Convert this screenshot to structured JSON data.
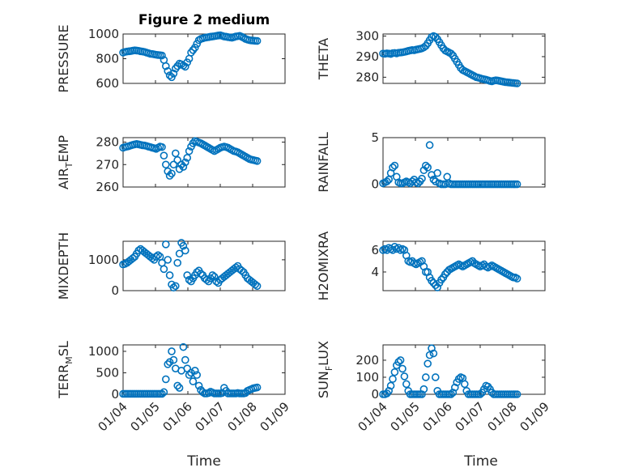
{
  "figure": {
    "title": "Figure 2 medium"
  },
  "chart_data": [
    {
      "type": "scatter",
      "ylabel": "PRESSURE",
      "ylim": [
        600,
        1000
      ],
      "yticks": [
        "1000",
        "800",
        "600"
      ],
      "xlim": [
        0,
        5
      ],
      "x": [
        0,
        0.06,
        0.12,
        0.18,
        0.24,
        0.3,
        0.36,
        0.42,
        0.48,
        0.54,
        0.6,
        0.66,
        0.72,
        0.78,
        0.84,
        0.9,
        0.96,
        1.02,
        1.08,
        1.14,
        1.2,
        1.26,
        1.32,
        1.38,
        1.44,
        1.5,
        1.56,
        1.62,
        1.68,
        1.74,
        1.8,
        1.86,
        1.92,
        1.98,
        2.04,
        2.1,
        2.16,
        2.22,
        2.28,
        2.34,
        2.4,
        2.46,
        2.52,
        2.58,
        2.64,
        2.7,
        2.76,
        2.82,
        2.88,
        2.94,
        3.0,
        3.06,
        3.12,
        3.18,
        3.24,
        3.3,
        3.36,
        3.42,
        3.48,
        3.54,
        3.6,
        3.66,
        3.72,
        3.78,
        3.84,
        3.9,
        3.96,
        4.02,
        4.08,
        4.14
      ],
      "y": [
        850,
        855,
        858,
        860,
        862,
        865,
        868,
        866,
        864,
        860,
        858,
        855,
        850,
        845,
        840,
        838,
        835,
        832,
        830,
        828,
        826,
        790,
        740,
        700,
        665,
        650,
        680,
        720,
        740,
        760,
        755,
        745,
        735,
        770,
        800,
        850,
        870,
        890,
        920,
        950,
        960,
        965,
        970,
        972,
        975,
        978,
        980,
        982,
        985,
        988,
        990,
        985,
        980,
        978,
        975,
        972,
        970,
        975,
        980,
        982,
        985,
        978,
        970,
        960,
        955,
        950,
        948,
        946,
        945,
        944
      ]
    },
    {
      "type": "scatter",
      "ylabel": "THETA",
      "ylim": [
        277,
        301
      ],
      "yticks": [
        "300",
        "290",
        "280"
      ],
      "xlim": [
        0,
        5
      ],
      "x": [
        0,
        0.06,
        0.12,
        0.18,
        0.24,
        0.3,
        0.36,
        0.42,
        0.48,
        0.54,
        0.6,
        0.66,
        0.72,
        0.78,
        0.84,
        0.9,
        0.96,
        1.02,
        1.08,
        1.14,
        1.2,
        1.26,
        1.32,
        1.38,
        1.44,
        1.5,
        1.56,
        1.62,
        1.68,
        1.74,
        1.8,
        1.86,
        1.92,
        1.98,
        2.04,
        2.1,
        2.16,
        2.22,
        2.28,
        2.34,
        2.4,
        2.46,
        2.52,
        2.58,
        2.64,
        2.7,
        2.76,
        2.82,
        2.88,
        2.94,
        3.0,
        3.06,
        3.12,
        3.18,
        3.24,
        3.3,
        3.36,
        3.42,
        3.48,
        3.54,
        3.6,
        3.66,
        3.72,
        3.78,
        3.84,
        3.9,
        3.96,
        4.02,
        4.08,
        4.14
      ],
      "y": [
        291.5,
        291.4,
        291.6,
        291.5,
        291.3,
        291.7,
        291.8,
        291.6,
        291.9,
        292.0,
        292.1,
        292.3,
        292.5,
        292.8,
        293.0,
        293.2,
        293.1,
        293.4,
        293.6,
        293.8,
        294.0,
        294.5,
        295.2,
        296.5,
        298.0,
        299.5,
        300.0,
        299.6,
        298.5,
        297.0,
        295.5,
        294.0,
        293.0,
        292.5,
        292.0,
        291.5,
        290.5,
        289.0,
        287.5,
        286.0,
        284.5,
        283.5,
        283.0,
        282.5,
        282.0,
        281.5,
        281.0,
        280.5,
        280.0,
        279.8,
        279.5,
        279.2,
        279.0,
        278.8,
        278.5,
        278.2,
        278.0,
        278.3,
        278.5,
        278.4,
        278.2,
        278.0,
        277.8,
        277.6,
        277.5,
        277.4,
        277.3,
        277.2,
        277.1,
        277.0
      ]
    },
    {
      "type": "scatter",
      "ylabel": "AIR_TEMP",
      "ylim": [
        260,
        282
      ],
      "yticks": [
        "280",
        "270",
        "260"
      ],
      "xlim": [
        0,
        5
      ],
      "x": [
        0,
        0.06,
        0.12,
        0.18,
        0.24,
        0.3,
        0.36,
        0.42,
        0.48,
        0.54,
        0.6,
        0.66,
        0.72,
        0.78,
        0.84,
        0.9,
        0.96,
        1.02,
        1.08,
        1.14,
        1.2,
        1.26,
        1.32,
        1.38,
        1.44,
        1.5,
        1.56,
        1.62,
        1.68,
        1.74,
        1.8,
        1.86,
        1.92,
        1.98,
        2.04,
        2.1,
        2.16,
        2.22,
        2.28,
        2.34,
        2.4,
        2.46,
        2.52,
        2.58,
        2.64,
        2.7,
        2.76,
        2.82,
        2.88,
        2.94,
        3.0,
        3.06,
        3.12,
        3.18,
        3.24,
        3.3,
        3.36,
        3.42,
        3.48,
        3.54,
        3.6,
        3.66,
        3.72,
        3.78,
        3.84,
        3.9,
        3.96,
        4.02,
        4.08,
        4.14
      ],
      "y": [
        277.5,
        277.8,
        278.0,
        278.2,
        278.5,
        278.8,
        279.0,
        279.2,
        279.0,
        278.8,
        278.6,
        278.5,
        278.3,
        278.0,
        277.8,
        277.5,
        277.3,
        277.0,
        277.5,
        278.0,
        277.8,
        274.0,
        270.0,
        267.0,
        265.0,
        266.0,
        270.0,
        275.0,
        272.0,
        268.0,
        270.0,
        269.0,
        271.0,
        273.0,
        276.0,
        278.0,
        279.5,
        280.5,
        280.2,
        279.8,
        279.5,
        279.0,
        278.5,
        278.0,
        277.5,
        277.0,
        276.5,
        276.0,
        276.5,
        277.0,
        277.5,
        277.8,
        278.0,
        277.8,
        277.5,
        277.0,
        276.5,
        276.0,
        275.8,
        275.5,
        275.0,
        274.5,
        274.0,
        273.5,
        273.0,
        272.5,
        272.2,
        272.0,
        271.8,
        271.6
      ]
    },
    {
      "type": "scatter",
      "ylabel": "RAINFALL",
      "ylim": [
        -0.3,
        5
      ],
      "yticks": [
        "5",
        "0"
      ],
      "xlim": [
        0,
        5
      ],
      "x": [
        0,
        0.06,
        0.12,
        0.18,
        0.24,
        0.3,
        0.36,
        0.42,
        0.48,
        0.54,
        0.6,
        0.66,
        0.72,
        0.78,
        0.84,
        0.9,
        0.96,
        1.02,
        1.08,
        1.14,
        1.2,
        1.26,
        1.32,
        1.38,
        1.44,
        1.5,
        1.56,
        1.62,
        1.68,
        1.74,
        1.8,
        1.86,
        1.92,
        1.98,
        2.04,
        2.1,
        2.16,
        2.22,
        2.28,
        2.34,
        2.4,
        2.46,
        2.52,
        2.58,
        2.64,
        2.7,
        2.76,
        2.82,
        2.88,
        2.94,
        3.0,
        3.06,
        3.12,
        3.18,
        3.24,
        3.3,
        3.36,
        3.42,
        3.48,
        3.54,
        3.6,
        3.66,
        3.72,
        3.78,
        3.84,
        3.9,
        3.96,
        4.02,
        4.08,
        4.14
      ],
      "y": [
        0.1,
        0.2,
        0.3,
        0.5,
        1.2,
        1.8,
        2.0,
        0.8,
        0.2,
        0.1,
        0.1,
        0.2,
        0.3,
        0.2,
        0.1,
        0.3,
        0.5,
        0.2,
        0.1,
        0.3,
        0.6,
        1.5,
        2.0,
        1.8,
        4.2,
        1.0,
        0.5,
        0.3,
        1.2,
        0.1,
        0.0,
        0.0,
        0.0,
        0.8,
        0.1,
        0.0,
        0.0,
        0.0,
        0.0,
        0.0,
        0.0,
        0.0,
        0.0,
        0.0,
        0.0,
        0.0,
        0.0,
        0.0,
        0.0,
        0.0,
        0.0,
        0.0,
        0.0,
        0.0,
        0.0,
        0.0,
        0.0,
        0.0,
        0.0,
        0.0,
        0.0,
        0.0,
        0.0,
        0.0,
        0.0,
        0.0,
        0.0,
        0.0,
        0.0,
        0.0
      ]
    },
    {
      "type": "scatter",
      "ylabel": "MIXDEPTH",
      "ylim": [
        0,
        1600
      ],
      "yticks": [
        "1000",
        "0"
      ],
      "xlim": [
        0,
        5
      ],
      "x": [
        0,
        0.06,
        0.12,
        0.18,
        0.24,
        0.3,
        0.36,
        0.42,
        0.48,
        0.54,
        0.6,
        0.66,
        0.72,
        0.78,
        0.84,
        0.9,
        0.96,
        1.02,
        1.08,
        1.14,
        1.2,
        1.26,
        1.32,
        1.38,
        1.44,
        1.5,
        1.56,
        1.62,
        1.68,
        1.74,
        1.8,
        1.86,
        1.92,
        1.98,
        2.04,
        2.1,
        2.16,
        2.22,
        2.28,
        2.34,
        2.4,
        2.46,
        2.52,
        2.58,
        2.64,
        2.7,
        2.76,
        2.82,
        2.88,
        2.94,
        3.0,
        3.06,
        3.12,
        3.18,
        3.24,
        3.3,
        3.36,
        3.42,
        3.48,
        3.54,
        3.6,
        3.66,
        3.72,
        3.78,
        3.84,
        3.9,
        3.96,
        4.02,
        4.08,
        4.14
      ],
      "y": [
        850,
        870,
        900,
        950,
        1000,
        1050,
        1100,
        1200,
        1300,
        1350,
        1300,
        1250,
        1200,
        1150,
        1100,
        1050,
        1000,
        1100,
        1150,
        1100,
        900,
        700,
        1500,
        1000,
        500,
        200,
        100,
        150,
        900,
        1200,
        1550,
        1450,
        1300,
        500,
        350,
        300,
        400,
        500,
        600,
        650,
        550,
        500,
        400,
        350,
        300,
        400,
        500,
        450,
        300,
        250,
        350,
        400,
        450,
        500,
        550,
        600,
        650,
        700,
        750,
        800,
        700,
        650,
        600,
        500,
        400,
        350,
        300,
        250,
        200,
        150
      ]
    },
    {
      "type": "scatter",
      "ylabel": "H2OMIXRA",
      "ylim": [
        2.3,
        6.8
      ],
      "yticks": [
        "6",
        "4"
      ],
      "xlim": [
        0,
        5
      ],
      "x": [
        0,
        0.06,
        0.12,
        0.18,
        0.24,
        0.3,
        0.36,
        0.42,
        0.48,
        0.54,
        0.6,
        0.66,
        0.72,
        0.78,
        0.84,
        0.9,
        0.96,
        1.02,
        1.08,
        1.14,
        1.2,
        1.26,
        1.32,
        1.38,
        1.44,
        1.5,
        1.56,
        1.62,
        1.68,
        1.74,
        1.8,
        1.86,
        1.92,
        1.98,
        2.04,
        2.1,
        2.16,
        2.22,
        2.28,
        2.34,
        2.4,
        2.46,
        2.52,
        2.58,
        2.64,
        2.7,
        2.76,
        2.82,
        2.88,
        2.94,
        3.0,
        3.06,
        3.12,
        3.18,
        3.24,
        3.3,
        3.36,
        3.42,
        3.48,
        3.54,
        3.6,
        3.66,
        3.72,
        3.78,
        3.84,
        3.9,
        3.96,
        4.02,
        4.08,
        4.14
      ],
      "y": [
        6.0,
        6.1,
        6.0,
        6.2,
        6.1,
        6.0,
        6.3,
        6.1,
        6.2,
        6.0,
        6.1,
        6.0,
        5.5,
        5.0,
        4.9,
        5.0,
        4.8,
        4.7,
        4.8,
        4.9,
        5.0,
        4.5,
        4.0,
        4.0,
        3.5,
        3.2,
        3.0,
        2.8,
        2.6,
        3.0,
        3.3,
        3.5,
        3.8,
        4.0,
        4.2,
        4.3,
        4.4,
        4.5,
        4.6,
        4.7,
        4.6,
        4.5,
        4.6,
        4.7,
        4.8,
        4.9,
        5.0,
        4.8,
        4.7,
        4.6,
        4.5,
        4.6,
        4.7,
        4.5,
        4.4,
        4.5,
        4.6,
        4.5,
        4.4,
        4.3,
        4.2,
        4.1,
        4.0,
        3.9,
        3.8,
        3.7,
        3.6,
        3.5,
        3.5,
        3.4
      ]
    },
    {
      "type": "scatter",
      "ylabel": "TERR_MSL",
      "ylim": [
        0,
        1150
      ],
      "yticks": [
        "1000",
        "500",
        "0"
      ],
      "xlim": [
        0,
        5
      ],
      "x": [
        0,
        0.06,
        0.12,
        0.18,
        0.24,
        0.3,
        0.36,
        0.42,
        0.48,
        0.54,
        0.6,
        0.66,
        0.72,
        0.78,
        0.84,
        0.9,
        0.96,
        1.02,
        1.08,
        1.14,
        1.2,
        1.26,
        1.32,
        1.38,
        1.44,
        1.5,
        1.56,
        1.62,
        1.68,
        1.74,
        1.8,
        1.86,
        1.92,
        1.98,
        2.04,
        2.1,
        2.16,
        2.22,
        2.28,
        2.34,
        2.4,
        2.46,
        2.52,
        2.58,
        2.64,
        2.7,
        2.76,
        2.82,
        2.88,
        2.94,
        3.0,
        3.06,
        3.12,
        3.18,
        3.24,
        3.3,
        3.36,
        3.42,
        3.48,
        3.54,
        3.6,
        3.66,
        3.72,
        3.78,
        3.84,
        3.9,
        3.96,
        4.02,
        4.08,
        4.14
      ],
      "y": [
        10,
        10,
        10,
        10,
        10,
        10,
        10,
        10,
        10,
        10,
        10,
        10,
        10,
        10,
        10,
        10,
        10,
        10,
        10,
        10,
        10,
        50,
        350,
        700,
        750,
        1000,
        800,
        600,
        200,
        150,
        550,
        1100,
        800,
        600,
        450,
        500,
        300,
        550,
        450,
        200,
        100,
        50,
        20,
        20,
        30,
        60,
        40,
        20,
        20,
        20,
        20,
        30,
        150,
        80,
        20,
        20,
        20,
        20,
        20,
        30,
        20,
        20,
        20,
        30,
        80,
        100,
        120,
        140,
        150,
        160
      ]
    },
    {
      "type": "scatter",
      "ylabel": "SUN_FLUX",
      "ylim": [
        0,
        290
      ],
      "yticks": [
        "200",
        "100",
        "0"
      ],
      "xlim": [
        0,
        5
      ],
      "x": [
        0,
        0.06,
        0.12,
        0.18,
        0.24,
        0.3,
        0.36,
        0.42,
        0.48,
        0.54,
        0.6,
        0.66,
        0.72,
        0.78,
        0.84,
        0.9,
        0.96,
        1.02,
        1.08,
        1.14,
        1.2,
        1.26,
        1.32,
        1.38,
        1.44,
        1.5,
        1.56,
        1.62,
        1.68,
        1.74,
        1.8,
        1.86,
        1.92,
        1.98,
        2.04,
        2.1,
        2.16,
        2.22,
        2.28,
        2.34,
        2.4,
        2.46,
        2.52,
        2.58,
        2.64,
        2.7,
        2.76,
        2.82,
        2.88,
        2.94,
        3.0,
        3.06,
        3.12,
        3.18,
        3.24,
        3.3,
        3.36,
        3.42,
        3.48,
        3.54,
        3.6,
        3.66,
        3.72,
        3.78,
        3.84,
        3.9,
        3.96,
        4.02,
        4.08,
        4.14
      ],
      "y": [
        0,
        0,
        5,
        20,
        50,
        90,
        130,
        170,
        190,
        200,
        150,
        105,
        60,
        20,
        0,
        0,
        0,
        0,
        0,
        0,
        0,
        30,
        100,
        180,
        230,
        270,
        240,
        100,
        20,
        0,
        0,
        0,
        0,
        0,
        0,
        0,
        10,
        40,
        70,
        90,
        100,
        95,
        60,
        20,
        0,
        0,
        0,
        0,
        0,
        0,
        0,
        10,
        30,
        50,
        45,
        30,
        10,
        0,
        0,
        0,
        0,
        0,
        0,
        0,
        0,
        0,
        0,
        0,
        0,
        0
      ]
    }
  ],
  "xaxis": {
    "tick_labels": [
      "01/04",
      "01/05",
      "01/06",
      "01/07",
      "01/08",
      "01/09"
    ],
    "label": "Time"
  }
}
